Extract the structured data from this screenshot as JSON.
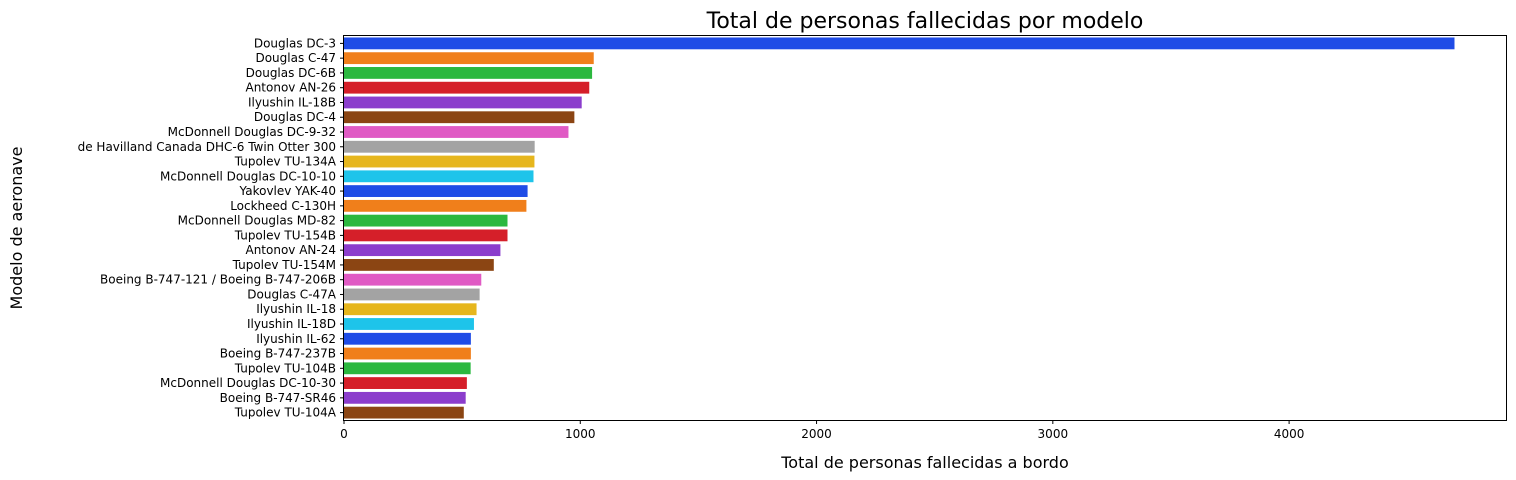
{
  "chart_data": {
    "type": "bar",
    "orientation": "horizontal",
    "title": "Total de personas fallecidas por modelo",
    "xlabel": "Total de personas fallecidas a bordo",
    "ylabel": "Modelo de aeronave",
    "xlim": [
      0,
      4918
    ],
    "xticks": [
      0,
      1000,
      2000,
      3000,
      4000
    ],
    "grid": false,
    "categories": [
      "Douglas DC-3",
      "Douglas C-47",
      "Douglas DC-6B",
      "Antonov AN-26",
      "Ilyushin IL-18B",
      "Douglas DC-4",
      "McDonnell Douglas DC-9-32",
      "de Havilland Canada DHC-6 Twin Otter 300",
      "Tupolev TU-134A",
      "McDonnell Douglas DC-10-10",
      "Yakovlev YAK-40",
      "Lockheed C-130H",
      "McDonnell Douglas MD-82",
      "Tupolev TU-154B",
      "Antonov AN-24",
      "Tupolev TU-154M",
      "Boeing B-747-121 / Boeing B-747-206B",
      "Douglas C-47A",
      "Ilyushin IL-18",
      "Ilyushin IL-18D",
      "Ilyushin IL-62",
      "Boeing B-747-237B",
      "Tupolev TU-104B",
      "McDonnell Douglas DC-10-30",
      "Boeing B-747-SR46",
      "Tupolev TU-104A"
    ],
    "values": [
      4700,
      1057,
      1050,
      1038,
      1006,
      975,
      950,
      807,
      806,
      802,
      777,
      772,
      692,
      692,
      662,
      634,
      581,
      574,
      561,
      550,
      537,
      537,
      536,
      520,
      515,
      507
    ],
    "colors": [
      "#1f4ce6",
      "#f07f1b",
      "#2bb83f",
      "#d51f29",
      "#8b3dcc",
      "#8b4513",
      "#e05ac4",
      "#a3a3a3",
      "#e6b61d",
      "#1ec4ea",
      "#1f4ce6",
      "#f07f1b",
      "#2bb83f",
      "#d51f29",
      "#8b3dcc",
      "#8b4513",
      "#e05ac4",
      "#a3a3a3",
      "#e6b61d",
      "#1ec4ea",
      "#1f4ce6",
      "#f07f1b",
      "#2bb83f",
      "#d51f29",
      "#8b3dcc",
      "#8b4513"
    ]
  }
}
